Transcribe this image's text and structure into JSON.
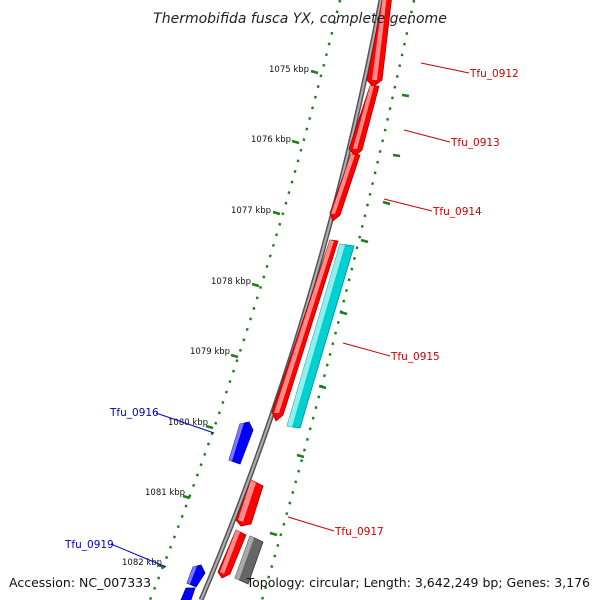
{
  "title": "Thermobifida fusca YX, complete genome",
  "footer": {
    "accession": "Accession: NC_007333",
    "summary": "Topology: circular; Length: 3,642,249 bp; Genes: 3,176"
  },
  "colors": {
    "forward_gene": "#ff0000",
    "reverse_gene": "#0000ff",
    "cyan_feature": "#00d0d0",
    "gray_feature": "#666666",
    "backbone": "#888888",
    "ruler": "#1a7f1a",
    "label_forward": "#cc0000",
    "label_reverse": "#0000cc"
  },
  "ruler_labels": [
    "1075 kbp",
    "1076 kbp",
    "1077 kbp",
    "1078 kbp",
    "1079 kbp",
    "1080 kbp",
    "1081 kbp",
    "1082 kbp"
  ],
  "gene_labels": [
    {
      "name": "Tfu_0912",
      "strand": "forward"
    },
    {
      "name": "Tfu_0913",
      "strand": "forward"
    },
    {
      "name": "Tfu_0914",
      "strand": "forward"
    },
    {
      "name": "Tfu_0915",
      "strand": "forward"
    },
    {
      "name": "Tfu_0916",
      "strand": "reverse"
    },
    {
      "name": "Tfu_0917",
      "strand": "forward"
    },
    {
      "name": "Tfu_0919",
      "strand": "reverse"
    }
  ]
}
